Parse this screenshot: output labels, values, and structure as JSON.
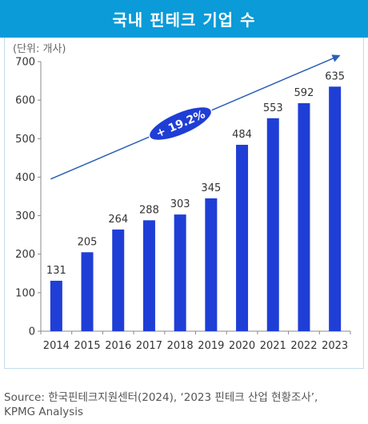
{
  "title": "국내 핀테크 기업 수",
  "source_lines": [
    "Source: 한국핀테크지원센터(2024), ‘2023 핀테크 산업 현황조사’,",
    "KPMG Analysis"
  ],
  "colors": {
    "title_bg": "#0a9bd8",
    "bar": "#1f3ed6",
    "arrow": "#2b5fb5",
    "badge": "#1f3ed6"
  },
  "chart_data": {
    "type": "bar",
    "unit_label": "(단위: 개사)",
    "categories": [
      "2014",
      "2015",
      "2016",
      "2017",
      "2018",
      "2019",
      "2020",
      "2021",
      "2022",
      "2023"
    ],
    "values": [
      131,
      205,
      264,
      288,
      303,
      345,
      484,
      553,
      592,
      635
    ],
    "ylim": [
      0,
      700
    ],
    "yticks": [
      0,
      100,
      200,
      300,
      400,
      500,
      600,
      700
    ],
    "grid": false,
    "annotation": {
      "label": "+ 19.2%",
      "shape": "arrow trend line from 2014 to 2023"
    }
  }
}
